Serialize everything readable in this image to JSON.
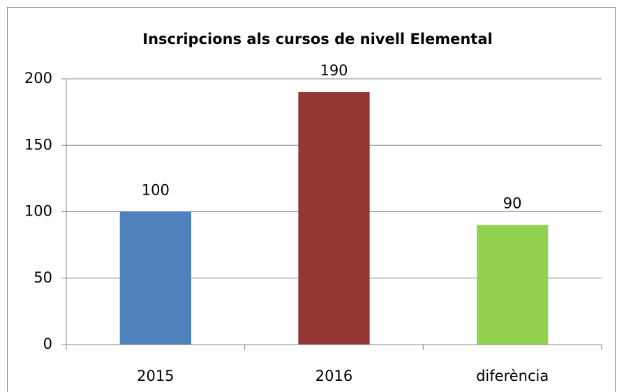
{
  "chart_data": {
    "type": "bar",
    "title": "Inscripcions als cursos de nivell Elemental",
    "categories": [
      "2015",
      "2016",
      "diferència"
    ],
    "values": [
      100,
      190,
      90
    ],
    "colors": [
      "#4f81bd",
      "#943634",
      "#92d050"
    ],
    "ylim": [
      0,
      200
    ],
    "yticks": [
      0,
      50,
      100,
      150,
      200
    ],
    "grid": true
  }
}
